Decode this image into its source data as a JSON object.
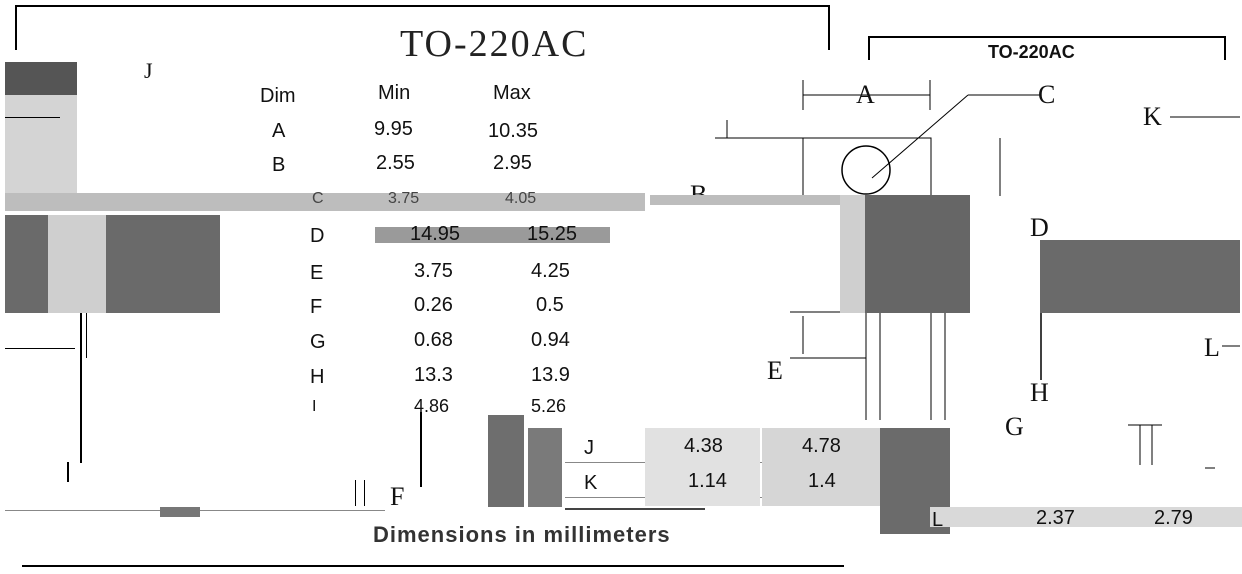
{
  "package": {
    "title_left": "TO-220AC",
    "title_right": "TO-220AC"
  },
  "table": {
    "headers": [
      "Dim",
      "Min",
      "Max"
    ],
    "rows": [
      {
        "dim": "A",
        "min": "9.95",
        "max": "10.35"
      },
      {
        "dim": "B",
        "min": "2.55",
        "max": "2.95"
      },
      {
        "dim": "C",
        "min": "3.75",
        "max": "4.05"
      },
      {
        "dim": "D",
        "min": "14.95",
        "max": "15.25"
      },
      {
        "dim": "E",
        "min": "3.75",
        "max": "4.25"
      },
      {
        "dim": "F",
        "min": "0.26",
        "max": "0.5"
      },
      {
        "dim": "G",
        "min": "0.68",
        "max": "0.94"
      },
      {
        "dim": "H",
        "min": "13.3",
        "max": "13.9"
      },
      {
        "dim": "I",
        "min": "4.86",
        "max": "5.26"
      },
      {
        "dim": "J",
        "min": "4.38",
        "max": "4.78"
      },
      {
        "dim": "K",
        "min": "1.14",
        "max": "1.4"
      },
      {
        "dim": "L",
        "min": "2.37",
        "max": "2.79"
      }
    ]
  },
  "drawing_labels": {
    "A": "A",
    "B": "B",
    "C": "C",
    "D": "D",
    "E": "E",
    "F": "F",
    "G": "G",
    "H": "H",
    "J": "J",
    "K": "K",
    "L": "L"
  },
  "footer": "Dimensions in millimeters"
}
